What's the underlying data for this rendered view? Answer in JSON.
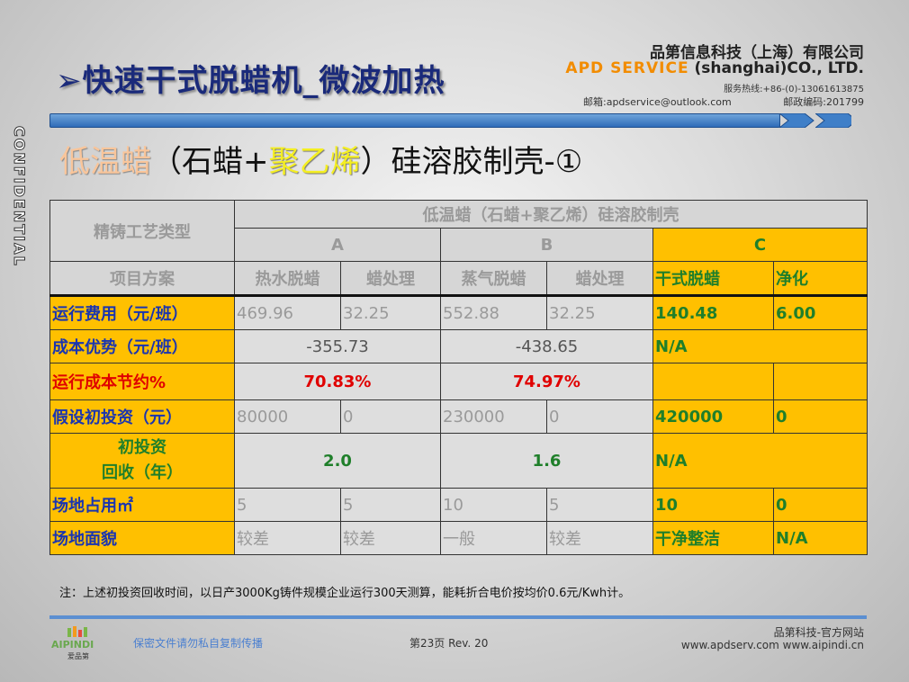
{
  "header": {
    "title": "➢快速干式脱蜡机_微波加热",
    "company_cn": "品第信息科技（上海）有限公司",
    "company_en_brand": "APD SERVICE",
    "company_en_rest": "(shanghai)CO., LTD.",
    "hotline": "服务热线:+86-(0)-13061613875",
    "email": "邮箱:apdservice@outlook.com",
    "postal": "邮政编码:201799",
    "confidential": "CONFIDENTIAL"
  },
  "subtitle": {
    "part1": "低温蜡",
    "part2": "（石蜡+",
    "part3": "聚乙烯",
    "part4": "）硅溶胶制壳-①"
  },
  "table": {
    "row_header_label": "精铸工艺类型",
    "group_title": "低温蜡（石蜡+聚乙烯）硅溶胶制壳",
    "group_a": "A",
    "group_b": "B",
    "group_c": "C",
    "plan_label": "项目方案",
    "cols": [
      "热水脱蜡",
      "蜡处理",
      "蒸气脱蜡",
      "蜡处理",
      "干式脱蜡",
      "净化"
    ],
    "rows": [
      {
        "label": "运行费用（元/班）",
        "vals": [
          "469.96",
          "32.25",
          "552.88",
          "32.25",
          "140.48",
          "6.00"
        ]
      },
      {
        "label": "成本优势（元/班）",
        "a": "-355.73",
        "b": "-438.65",
        "c": "N/A"
      },
      {
        "label": "运行成本节约%",
        "a": "70.83%",
        "b": "74.97%"
      },
      {
        "label": "假设初投资（元）",
        "vals": [
          "80000",
          "0",
          "230000",
          "0",
          "420000",
          "0"
        ]
      },
      {
        "label1": "初投资",
        "label2": "回收（年）",
        "a": "2.0",
        "b": "1.6",
        "c": "N/A"
      },
      {
        "label": "场地占用㎡",
        "vals": [
          "5",
          "5",
          "10",
          "5",
          "10",
          "0"
        ]
      },
      {
        "label": "场地面貌",
        "vals": [
          "较差",
          "较差",
          "一般",
          "较差",
          "干净整洁",
          "N/A"
        ]
      }
    ]
  },
  "note": "注：上述初投资回收时间，以日产3000Kg铸件规模企业运行300天测算，能耗折合电价按均价0.6元/Kwh计。",
  "footer": {
    "warning": "保密文件请勿私自复制传播",
    "page": "第23页    Rev. 20",
    "site_label": "品第科技-官方网站",
    "urls": "www.apdserv.com    www.aipindi.cn",
    "logo_text": "AIPINDI",
    "logo_cn": "爱品第"
  }
}
